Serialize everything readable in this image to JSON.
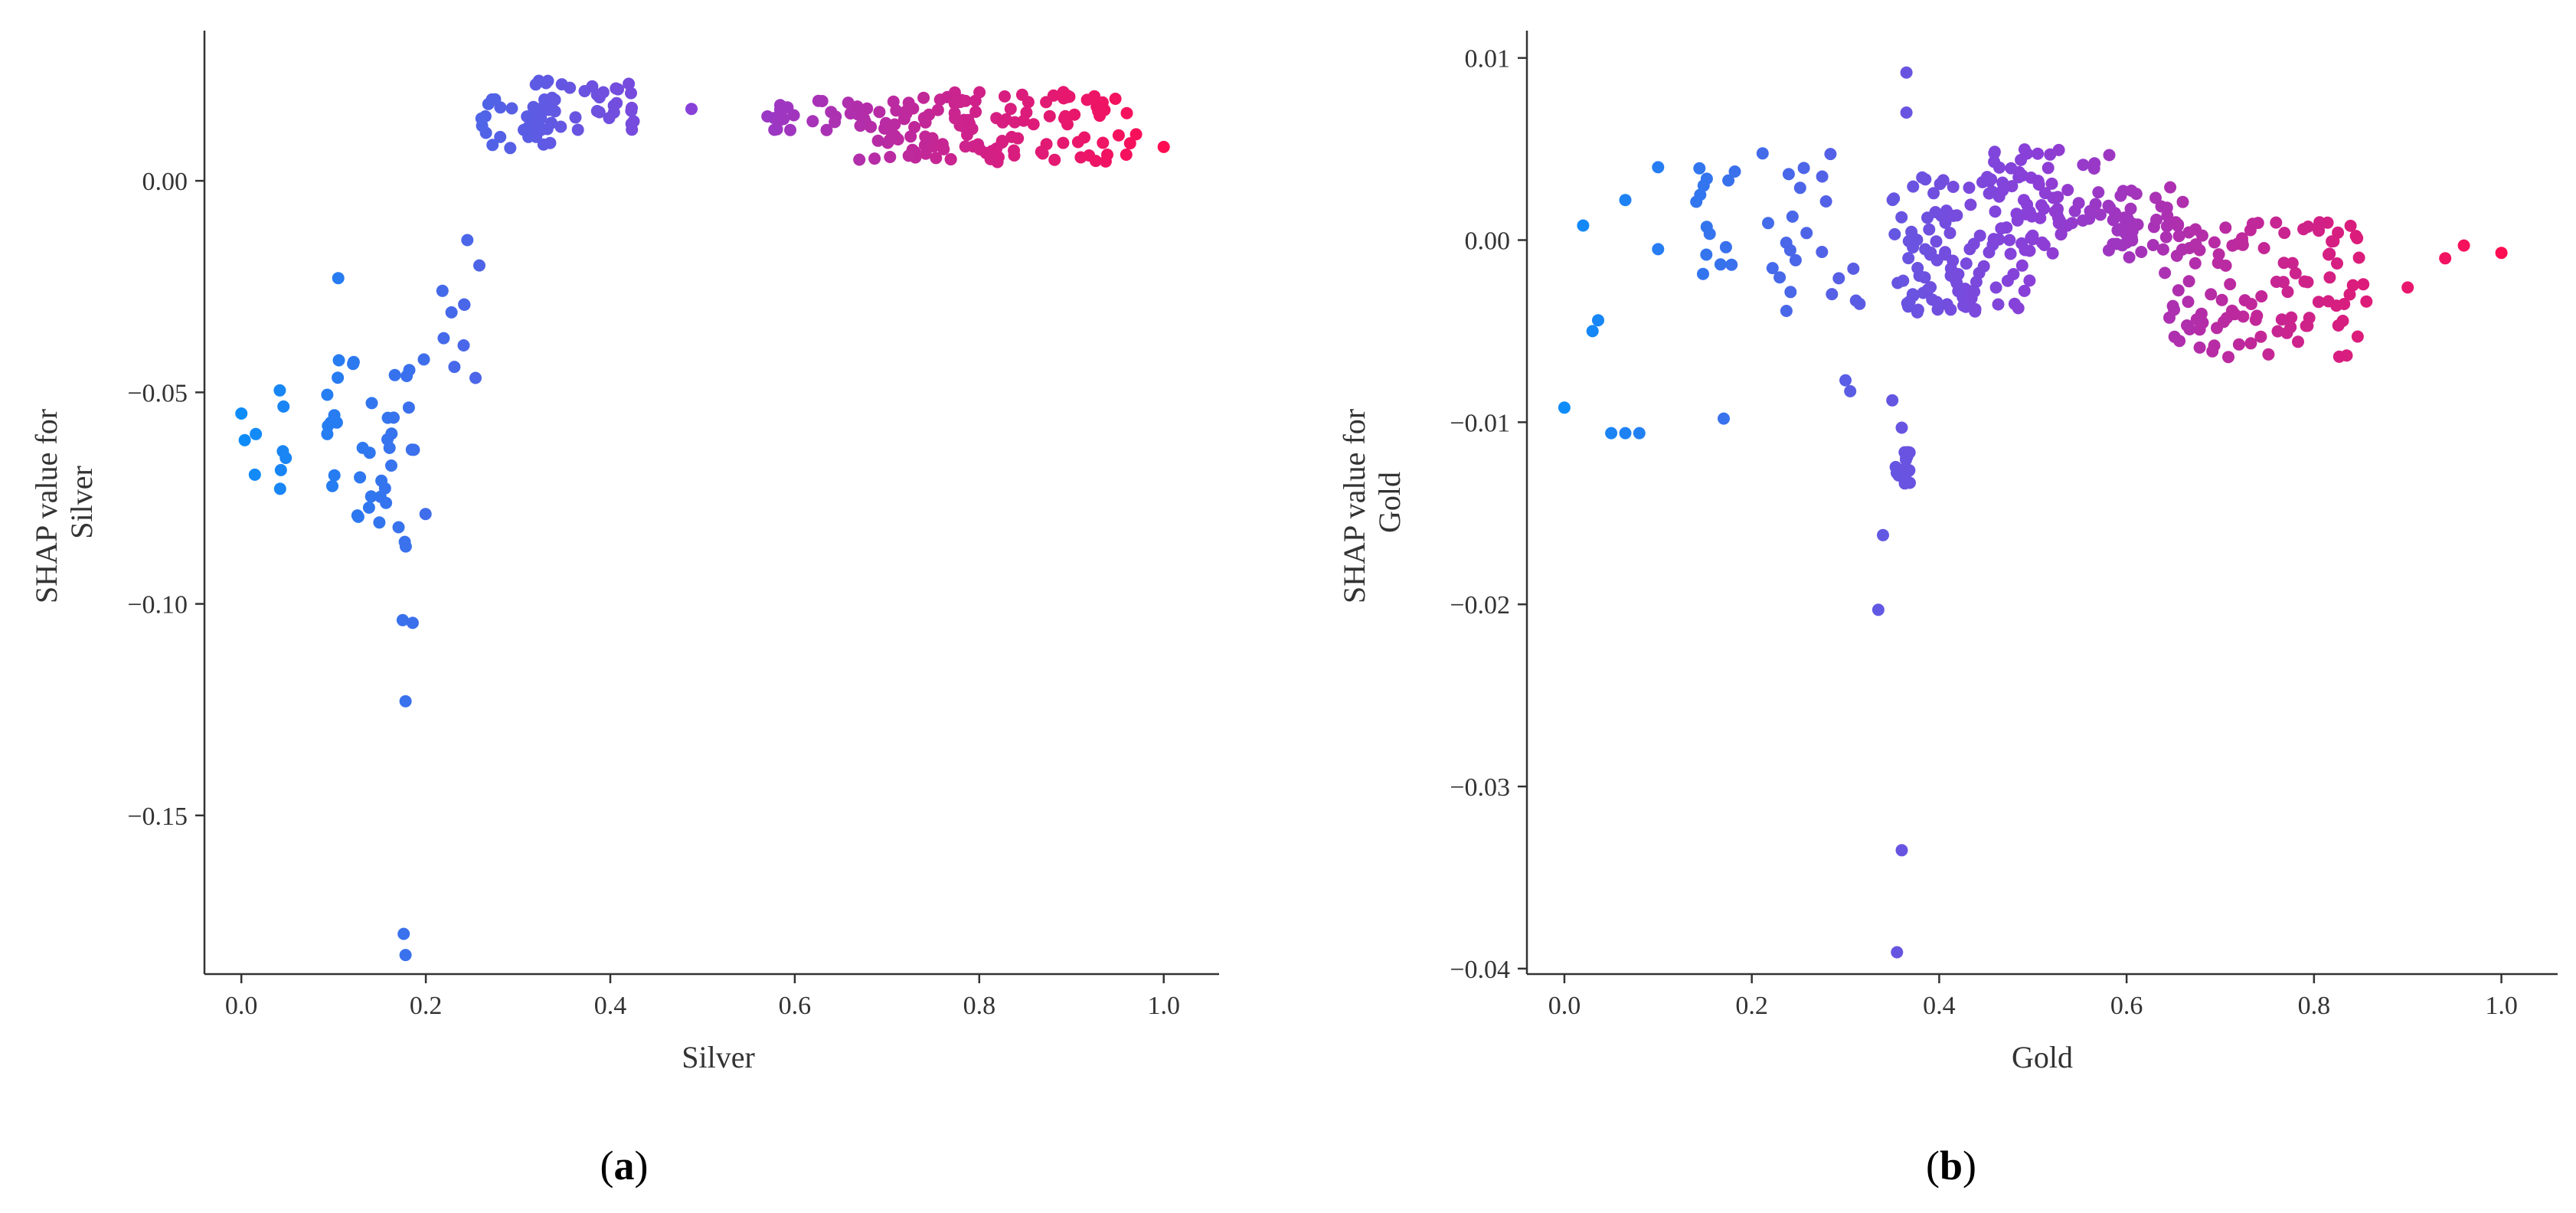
{
  "chart_data": [
    {
      "type": "scatter",
      "xlabel": "Silver",
      "ylabel_lines": [
        "SHAP value for",
        "Silver"
      ],
      "caption": {
        "open": "(",
        "letter": "a",
        "close": ")"
      },
      "xlim": [
        -0.04,
        1.06
      ],
      "ylim": [
        -0.1875,
        0.0355
      ],
      "xticks": [
        "0.0",
        "0.2",
        "0.4",
        "0.6",
        "0.8",
        "1.0"
      ],
      "yticks": [
        "0.00",
        "−0.05",
        "−0.10",
        "−0.15"
      ],
      "grid": false,
      "legend": "none",
      "color_scale": [
        "#0e8cf8",
        "#8a3fd8",
        "#ff0d52"
      ],
      "clusters": [
        {
          "x": [
            0.0,
            0.06
          ],
          "y": [
            -0.075,
            -0.043
          ],
          "n": 9
        },
        {
          "x": [
            0.09,
            0.2
          ],
          "y": [
            -0.082,
            -0.042
          ],
          "n": 40
        },
        {
          "x": [
            0.17,
            0.19
          ],
          "y": [
            -0.105,
            -0.085
          ],
          "n": 4
        },
        {
          "x": [
            0.2,
            0.26
          ],
          "y": [
            -0.055,
            -0.013
          ],
          "n": 7
        },
        {
          "x": [
            0.26,
            0.34
          ],
          "y": [
            0.007,
            0.02
          ],
          "n": 30
        },
        {
          "x": [
            0.31,
            0.43
          ],
          "y": [
            0.012,
            0.025
          ],
          "n": 35
        },
        {
          "x": [
            0.57,
            0.8
          ],
          "y": [
            0.012,
            0.019
          ],
          "n": 55
        },
        {
          "x": [
            0.68,
            0.97
          ],
          "y": [
            0.004,
            0.011
          ],
          "n": 60
        },
        {
          "x": [
            0.72,
            0.95
          ],
          "y": [
            0.013,
            0.021
          ],
          "n": 45
        }
      ],
      "points": [
        {
          "x": 0.0,
          "y": -0.055
        },
        {
          "x": 0.105,
          "y": -0.023
        },
        {
          "x": 0.178,
          "y": -0.123
        },
        {
          "x": 0.176,
          "y": -0.178
        },
        {
          "x": 0.178,
          "y": -0.183
        },
        {
          "x": 0.245,
          "y": -0.014
        },
        {
          "x": 0.258,
          "y": -0.02
        },
        {
          "x": 0.218,
          "y": -0.026
        },
        {
          "x": 0.488,
          "y": 0.017
        },
        {
          "x": 1.0,
          "y": 0.008
        },
        {
          "x": 0.96,
          "y": 0.016
        },
        {
          "x": 0.67,
          "y": 0.005
        }
      ]
    },
    {
      "type": "scatter",
      "xlabel": "Gold",
      "ylabel_lines": [
        "SHAP value for",
        "Gold"
      ],
      "caption": {
        "open": "(",
        "letter": "b",
        "close": ")"
      },
      "xlim": [
        -0.04,
        1.06
      ],
      "ylim": [
        -0.0403,
        0.0115
      ],
      "xticks": [
        "0.0",
        "0.2",
        "0.4",
        "0.6",
        "0.8",
        "1.0"
      ],
      "yticks": [
        "0.01",
        "0.00",
        "−0.01",
        "−0.02",
        "−0.03",
        "−0.04"
      ],
      "grid": false,
      "legend": "none",
      "color_scale": [
        "#0e8cf8",
        "#8a3fd8",
        "#ff0d52"
      ],
      "clusters": [
        {
          "x": [
            0.14,
            0.19
          ],
          "y": [
            -0.002,
            0.004
          ],
          "n": 14
        },
        {
          "x": [
            0.21,
            0.32
          ],
          "y": [
            -0.004,
            0.005
          ],
          "n": 22
        },
        {
          "x": [
            0.35,
            0.5
          ],
          "y": [
            -0.004,
            0.004
          ],
          "n": 110
        },
        {
          "x": [
            0.45,
            0.6
          ],
          "y": [
            -0.001,
            0.005
          ],
          "n": 70
        },
        {
          "x": [
            0.58,
            0.66
          ],
          "y": [
            -0.001,
            0.003
          ],
          "n": 40
        },
        {
          "x": [
            0.64,
            0.86
          ],
          "y": [
            -0.0065,
            0.001
          ],
          "n": 110
        },
        {
          "x": [
            0.35,
            0.37
          ],
          "y": [
            -0.0138,
            -0.0115
          ],
          "n": 16
        }
      ],
      "points": [
        {
          "x": 0.0,
          "y": -0.0092
        },
        {
          "x": 0.02,
          "y": 0.0008
        },
        {
          "x": 0.03,
          "y": -0.005
        },
        {
          "x": 0.036,
          "y": -0.0044
        },
        {
          "x": 0.05,
          "y": -0.0106
        },
        {
          "x": 0.065,
          "y": -0.0106
        },
        {
          "x": 0.08,
          "y": -0.0106
        },
        {
          "x": 0.065,
          "y": 0.0022
        },
        {
          "x": 0.1,
          "y": 0.004
        },
        {
          "x": 0.1,
          "y": -0.0005
        },
        {
          "x": 0.17,
          "y": -0.0098
        },
        {
          "x": 0.3,
          "y": -0.0077
        },
        {
          "x": 0.305,
          "y": -0.0083
        },
        {
          "x": 0.315,
          "y": -0.0035
        },
        {
          "x": 0.335,
          "y": -0.0203
        },
        {
          "x": 0.34,
          "y": -0.0162
        },
        {
          "x": 0.35,
          "y": -0.0088
        },
        {
          "x": 0.36,
          "y": -0.0103
        },
        {
          "x": 0.36,
          "y": -0.0335
        },
        {
          "x": 0.355,
          "y": -0.0391
        },
        {
          "x": 0.365,
          "y": 0.0092
        },
        {
          "x": 0.365,
          "y": 0.007
        },
        {
          "x": 0.9,
          "y": -0.0026
        },
        {
          "x": 0.94,
          "y": -0.001
        },
        {
          "x": 0.96,
          "y": -0.0003
        },
        {
          "x": 1.0,
          "y": -0.0007
        }
      ]
    }
  ]
}
